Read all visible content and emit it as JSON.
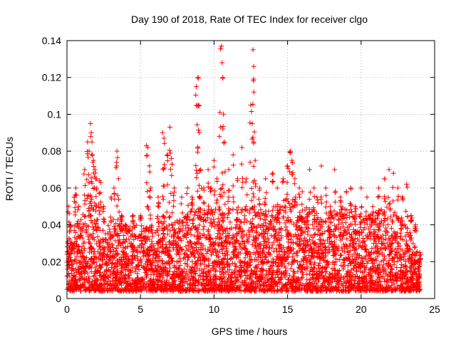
{
  "chart_data": {
    "type": "scatter",
    "title": "Day 190 of 2018, Rate Of TEC Index for receiver clgo",
    "xlabel": "GPS time / hours",
    "ylabel": "ROTI / TECUs",
    "xlim": [
      0,
      25
    ],
    "ylim": [
      0,
      0.14
    ],
    "xticks": [
      0,
      5,
      10,
      15,
      20,
      25
    ],
    "yticks": [
      0,
      0.02,
      0.04,
      0.06,
      0.08,
      0.1,
      0.12,
      0.14
    ],
    "xtick_labels": [
      "0",
      "5",
      "10",
      "15",
      "20",
      "25"
    ],
    "ytick_labels": [
      "0",
      "0.02",
      "0.04",
      "0.06",
      "0.08",
      "0.1",
      "0.12",
      "0.14"
    ],
    "grid": true,
    "marker": "+",
    "marker_color": "#ff0000",
    "series": [
      {
        "name": "ROTI",
        "points": [
          [
            0.1,
            0.05
          ],
          [
            0.2,
            0.04
          ],
          [
            0.3,
            0.03
          ],
          [
            0.5,
            0.055
          ],
          [
            0.6,
            0.06
          ],
          [
            0.8,
            0.05
          ],
          [
            1.2,
            0.07
          ],
          [
            1.4,
            0.085
          ],
          [
            1.5,
            0.08
          ],
          [
            1.6,
            0.095
          ],
          [
            1.65,
            0.09
          ],
          [
            1.7,
            0.085
          ],
          [
            1.8,
            0.075
          ],
          [
            1.9,
            0.07
          ],
          [
            2.0,
            0.065
          ],
          [
            2.2,
            0.064
          ],
          [
            2.3,
            0.063
          ],
          [
            2.5,
            0.05
          ],
          [
            3.0,
            0.055
          ],
          [
            3.2,
            0.06
          ],
          [
            3.4,
            0.08
          ],
          [
            3.5,
            0.065
          ],
          [
            3.7,
            0.045
          ],
          [
            4.0,
            0.04
          ],
          [
            4.5,
            0.045
          ],
          [
            5.0,
            0.045
          ],
          [
            5.4,
            0.083
          ],
          [
            5.5,
            0.082
          ],
          [
            5.6,
            0.072
          ],
          [
            5.7,
            0.06
          ],
          [
            6.2,
            0.055
          ],
          [
            6.5,
            0.09
          ],
          [
            6.6,
            0.087
          ],
          [
            6.8,
            0.078
          ],
          [
            7.0,
            0.093
          ],
          [
            7.1,
            0.076
          ],
          [
            7.3,
            0.06
          ],
          [
            7.8,
            0.055
          ],
          [
            8.2,
            0.06
          ],
          [
            8.5,
            0.055
          ],
          [
            8.8,
            0.115
          ],
          [
            8.9,
            0.12
          ],
          [
            8.95,
            0.105
          ],
          [
            9.0,
            0.09
          ],
          [
            9.1,
            0.07
          ],
          [
            9.3,
            0.06
          ],
          [
            9.6,
            0.07
          ],
          [
            9.8,
            0.06
          ],
          [
            10.0,
            0.075
          ],
          [
            10.2,
            0.065
          ],
          [
            10.4,
            0.101
          ],
          [
            10.5,
            0.137
          ],
          [
            10.55,
            0.128
          ],
          [
            10.6,
            0.12
          ],
          [
            10.7,
            0.085
          ],
          [
            11.0,
            0.07
          ],
          [
            11.3,
            0.078
          ],
          [
            11.6,
            0.065
          ],
          [
            11.9,
            0.082
          ],
          [
            12.2,
            0.065
          ],
          [
            12.5,
            0.105
          ],
          [
            12.6,
            0.095
          ],
          [
            12.65,
            0.135
          ],
          [
            12.7,
            0.126
          ],
          [
            12.8,
            0.075
          ],
          [
            13.1,
            0.06
          ],
          [
            13.5,
            0.065
          ],
          [
            14.0,
            0.068
          ],
          [
            14.3,
            0.06
          ],
          [
            14.7,
            0.065
          ],
          [
            15.0,
            0.072
          ],
          [
            15.2,
            0.08
          ],
          [
            15.3,
            0.075
          ],
          [
            15.5,
            0.065
          ],
          [
            15.8,
            0.06
          ],
          [
            16.0,
            0.058
          ],
          [
            16.5,
            0.07
          ],
          [
            16.8,
            0.06
          ],
          [
            17.0,
            0.055
          ],
          [
            17.3,
            0.072
          ],
          [
            17.6,
            0.06
          ],
          [
            17.9,
            0.05
          ],
          [
            18.2,
            0.07
          ],
          [
            18.6,
            0.055
          ],
          [
            19.0,
            0.058
          ],
          [
            19.3,
            0.06
          ],
          [
            19.6,
            0.05
          ],
          [
            20.0,
            0.06
          ],
          [
            20.4,
            0.055
          ],
          [
            20.8,
            0.05
          ],
          [
            21.2,
            0.06
          ],
          [
            21.6,
            0.065
          ],
          [
            21.9,
            0.07
          ],
          [
            22.2,
            0.068
          ],
          [
            22.5,
            0.06
          ],
          [
            22.8,
            0.055
          ],
          [
            23.1,
            0.062
          ],
          [
            23.4,
            0.045
          ],
          [
            23.7,
            0.04
          ],
          [
            24.0,
            0.025
          ]
        ]
      }
    ],
    "background_band": {
      "description": "dense cluster",
      "x_range": [
        0,
        24
      ],
      "y_min": 0.004,
      "y_envelope": [
        [
          0,
          0.03
        ],
        [
          0.5,
          0.04
        ],
        [
          1,
          0.045
        ],
        [
          1.5,
          0.05
        ],
        [
          2,
          0.045
        ],
        [
          2.5,
          0.04
        ],
        [
          3,
          0.04
        ],
        [
          3.5,
          0.042
        ],
        [
          4,
          0.038
        ],
        [
          4.5,
          0.04
        ],
        [
          5,
          0.04
        ],
        [
          5.5,
          0.04
        ],
        [
          6,
          0.04
        ],
        [
          6.5,
          0.045
        ],
        [
          7,
          0.045
        ],
        [
          7.5,
          0.042
        ],
        [
          8,
          0.045
        ],
        [
          8.5,
          0.048
        ],
        [
          9,
          0.05
        ],
        [
          9.5,
          0.048
        ],
        [
          10,
          0.05
        ],
        [
          10.5,
          0.05
        ],
        [
          11,
          0.05
        ],
        [
          11.5,
          0.045
        ],
        [
          12,
          0.05
        ],
        [
          12.5,
          0.05
        ],
        [
          13,
          0.048
        ],
        [
          13.5,
          0.05
        ],
        [
          14,
          0.05
        ],
        [
          14.5,
          0.052
        ],
        [
          15,
          0.055
        ],
        [
          15.5,
          0.055
        ],
        [
          16,
          0.05
        ],
        [
          16.5,
          0.05
        ],
        [
          17,
          0.045
        ],
        [
          17.5,
          0.045
        ],
        [
          18,
          0.048
        ],
        [
          18.5,
          0.05
        ],
        [
          19,
          0.05
        ],
        [
          19.5,
          0.045
        ],
        [
          20,
          0.045
        ],
        [
          20.5,
          0.045
        ],
        [
          21,
          0.048
        ],
        [
          21.5,
          0.05
        ],
        [
          22,
          0.05
        ],
        [
          22.5,
          0.045
        ],
        [
          23,
          0.04
        ],
        [
          23.5,
          0.035
        ],
        [
          24,
          0.02
        ]
      ]
    }
  }
}
